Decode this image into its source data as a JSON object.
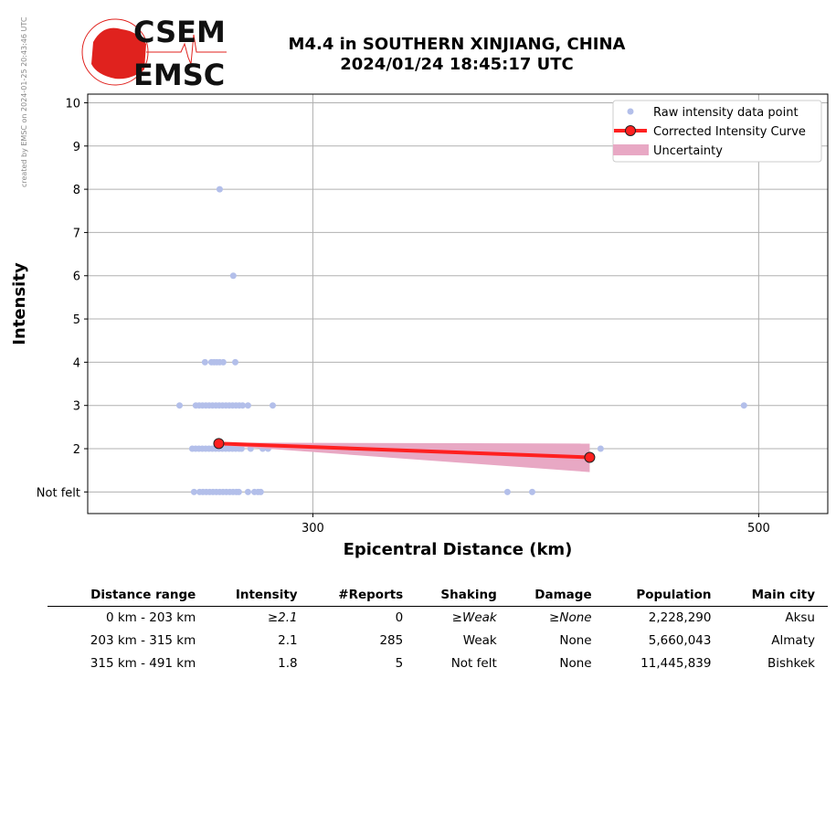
{
  "credit": "created by EMSC on 2024-01-25 20:43:46 UTC",
  "logo": {
    "text_top": "CSEM",
    "text_bottom": "EMSC"
  },
  "title_line1": "M4.4 in SOUTHERN XINJIANG, CHINA",
  "title_line2": "2024/01/24 18:45:17 UTC",
  "colors": {
    "points": "#b3bfea",
    "curve": "#ff2020",
    "uncertainty": "#e8a8c4",
    "logo": "#e0221e"
  },
  "chart_data": {
    "type": "scatter",
    "xlabel": "Epicentral Distance (km)",
    "ylabel": "Intensity",
    "xlim": [
      199,
      531
    ],
    "ylim": [
      0.5,
      10.2
    ],
    "xticks": [
      300,
      500
    ],
    "xtick_labels": [
      "300",
      "500"
    ],
    "yticks": [
      1,
      2,
      3,
      4,
      5,
      6,
      7,
      8,
      9,
      10
    ],
    "ytick_labels": [
      "Not felt",
      "2",
      "3",
      "4",
      "5",
      "6",
      "7",
      "8",
      "9",
      "10"
    ],
    "grid": true,
    "legend_placement": "top-right",
    "legend": [
      "Raw intensity data point",
      "Corrected Intensity Curve",
      "Uncertainty"
    ],
    "raw_points": [
      [
        258.2,
        8
      ],
      [
        264.3,
        6
      ],
      [
        251.6,
        4
      ],
      [
        254.5,
        4
      ],
      [
        255.7,
        4
      ],
      [
        256.9,
        4
      ],
      [
        258.2,
        4
      ],
      [
        259.8,
        4
      ],
      [
        265.2,
        4
      ],
      [
        240.2,
        3
      ],
      [
        247.5,
        3
      ],
      [
        249,
        3
      ],
      [
        250.5,
        3
      ],
      [
        252,
        3
      ],
      [
        253.5,
        3
      ],
      [
        255,
        3
      ],
      [
        256.5,
        3
      ],
      [
        258,
        3
      ],
      [
        259.5,
        3
      ],
      [
        261,
        3
      ],
      [
        262.5,
        3
      ],
      [
        264,
        3
      ],
      [
        265.5,
        3
      ],
      [
        267,
        3
      ],
      [
        268.5,
        3
      ],
      [
        270.9,
        3
      ],
      [
        282.0,
        3
      ],
      [
        493.4,
        3
      ],
      [
        245.9,
        2
      ],
      [
        247.4,
        2
      ],
      [
        248.9,
        2
      ],
      [
        250.4,
        2
      ],
      [
        251.9,
        2
      ],
      [
        253.4,
        2
      ],
      [
        254.9,
        2
      ],
      [
        256.4,
        2
      ],
      [
        257.9,
        2
      ],
      [
        259.4,
        2
      ],
      [
        260.9,
        2
      ],
      [
        262.4,
        2
      ],
      [
        263.9,
        2
      ],
      [
        265.4,
        2
      ],
      [
        266.9,
        2
      ],
      [
        268.0,
        2
      ],
      [
        272.1,
        2
      ],
      [
        277.5,
        2
      ],
      [
        279.9,
        2
      ],
      [
        403.7,
        2
      ],
      [
        429.1,
        2
      ],
      [
        246.7,
        1
      ],
      [
        249.2,
        1
      ],
      [
        250.7,
        1
      ],
      [
        252.2,
        1
      ],
      [
        253.7,
        1
      ],
      [
        255.2,
        1
      ],
      [
        256.7,
        1
      ],
      [
        258.2,
        1
      ],
      [
        259.7,
        1
      ],
      [
        261.2,
        1
      ],
      [
        262.7,
        1
      ],
      [
        264.2,
        1
      ],
      [
        265.7,
        1
      ],
      [
        266.8,
        1
      ],
      [
        270.9,
        1
      ],
      [
        273.8,
        1
      ],
      [
        275.4,
        1
      ],
      [
        276.6,
        1
      ],
      [
        387.3,
        1
      ],
      [
        398.4,
        1
      ]
    ],
    "curve": [
      [
        257.8,
        2.12
      ],
      [
        424.2,
        1.8
      ]
    ],
    "uncertainty": {
      "x": [
        257.8,
        424.2
      ],
      "upper": [
        2.14,
        2.12
      ],
      "lower": [
        2.08,
        1.46
      ]
    }
  },
  "table": {
    "headers": [
      "Distance range",
      "Intensity",
      "#Reports",
      "Shaking",
      "Damage",
      "Population",
      "Main city"
    ],
    "rows": [
      [
        "0 km -  203 km",
        "≥2.1",
        "0",
        "≥Weak",
        "≥None",
        "2,228,290",
        "Aksu"
      ],
      [
        "203 km -  315 km",
        "2.1",
        "285",
        "Weak",
        "None",
        "5,660,043",
        "Almaty"
      ],
      [
        "315 km -  491 km",
        "1.8",
        "5",
        "Not felt",
        "None",
        "11,445,839",
        "Bishkek"
      ]
    ]
  }
}
